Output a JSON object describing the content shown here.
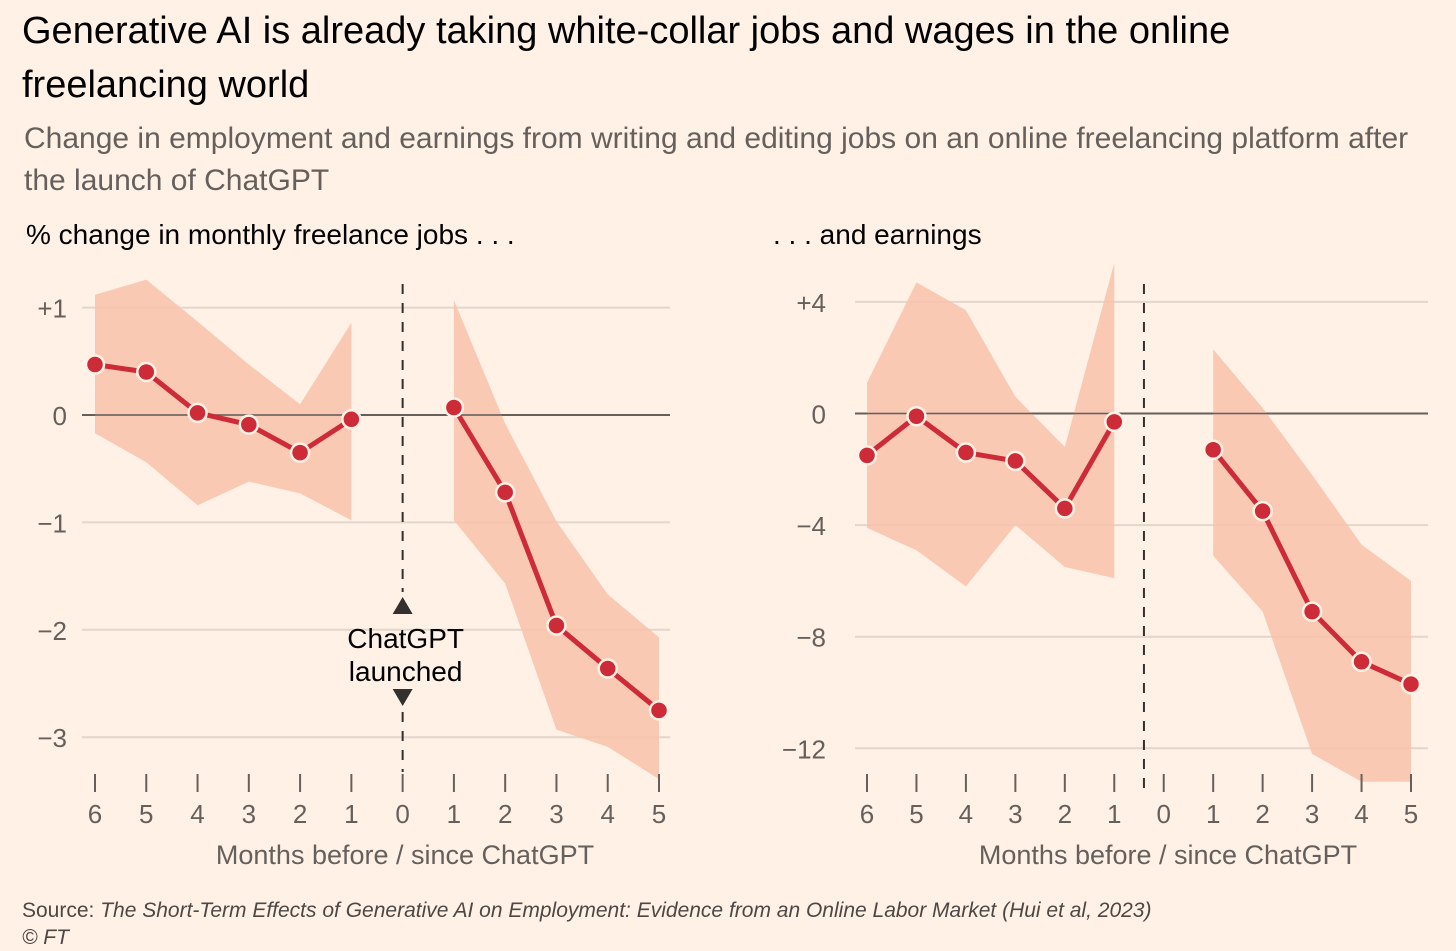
{
  "title": "Generative AI is already taking white-collar jobs and wages in the online freelancing world",
  "subtitle": "Change in employment and earnings from writing and editing jobs on an online freelancing platform after the launch of ChatGPT",
  "source": {
    "label": "Source:",
    "citation": "The Short-Term Effects of Generative AI on Employment: Evidence from an Online Labor Market (Hui et al, 2023)",
    "copyright": "© FT"
  },
  "colors": {
    "background": "#fff1e5",
    "line": "#cc2b37",
    "band": "#f9c2ab",
    "grid": "#e3d6cb",
    "zero": "#66605c"
  },
  "annotation": {
    "line1": "ChatGPT",
    "line2": "launched"
  },
  "chart_data": [
    {
      "type": "line",
      "title": "% change in monthly freelance jobs . . .",
      "xlabel": "Months before / since ChatGPT",
      "ylabel": "",
      "ylim": [
        -3.4,
        1.25
      ],
      "yticks": [
        1,
        0,
        -1,
        -2,
        -3
      ],
      "ytick_labels": [
        "+1",
        "0",
        "−1",
        "−2",
        "−3"
      ],
      "xticks": [
        -6,
        -5,
        -4,
        -3,
        -2,
        -1,
        0,
        1,
        2,
        3,
        4,
        5
      ],
      "xtick_labels": [
        "6",
        "5",
        "4",
        "3",
        "2",
        "1",
        "0",
        "1",
        "2",
        "3",
        "4",
        "5"
      ],
      "event_x": 0,
      "series": [
        {
          "segment": "before",
          "x": [
            -6,
            -5,
            -4,
            -3,
            -2,
            -1
          ],
          "values": [
            0.47,
            0.4,
            0.02,
            -0.09,
            -0.35,
            -0.04
          ],
          "upper": [
            1.12,
            1.26,
            0.87,
            0.47,
            0.1,
            0.86
          ],
          "lower": [
            -0.17,
            -0.44,
            -0.84,
            -0.62,
            -0.73,
            -0.98
          ]
        },
        {
          "segment": "after",
          "x": [
            1,
            2,
            3,
            4,
            5
          ],
          "values": [
            0.07,
            -0.72,
            -1.96,
            -2.36,
            -2.75
          ],
          "upper": [
            1.07,
            -0.08,
            -0.99,
            -1.67,
            -2.07
          ],
          "lower": [
            -0.98,
            -1.57,
            -2.93,
            -3.09,
            -3.39
          ]
        }
      ]
    },
    {
      "type": "line",
      "title": ". . . and earnings",
      "xlabel": "Months before / since ChatGPT",
      "ylabel": "",
      "ylim": [
        -13.2,
        5.5
      ],
      "yticks": [
        4,
        0,
        -4,
        -8,
        -12
      ],
      "ytick_labels": [
        "+4",
        "0",
        "−4",
        "−8",
        "−12"
      ],
      "xticks": [
        -6,
        -5,
        -4,
        -3,
        -2,
        -1,
        0,
        1,
        2,
        3,
        4,
        5
      ],
      "xtick_labels": [
        "6",
        "5",
        "4",
        "3",
        "2",
        "1",
        "0",
        "1",
        "2",
        "3",
        "4",
        "5"
      ],
      "event_x": -0.4,
      "series": [
        {
          "segment": "before",
          "x": [
            -6,
            -5,
            -4,
            -3,
            -2,
            -1
          ],
          "values": [
            -1.5,
            -0.1,
            -1.4,
            -1.7,
            -3.4,
            -0.3
          ],
          "upper": [
            1.1,
            4.7,
            3.7,
            0.6,
            -1.2,
            5.4
          ],
          "lower": [
            -4.1,
            -4.9,
            -6.2,
            -4.0,
            -5.5,
            -5.9
          ]
        },
        {
          "segment": "after",
          "x": [
            1,
            2,
            3,
            4,
            5
          ],
          "values": [
            -1.3,
            -3.5,
            -7.1,
            -8.9,
            -9.7
          ],
          "upper": [
            2.3,
            0.2,
            -2.2,
            -4.7,
            -6.0
          ],
          "lower": [
            -5.1,
            -7.1,
            -12.2,
            -13.2,
            -13.2
          ]
        }
      ]
    }
  ]
}
